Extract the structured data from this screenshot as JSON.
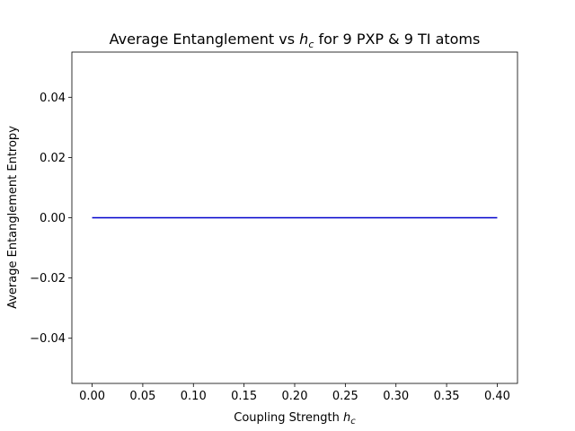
{
  "chart_data": {
    "type": "line",
    "title": "Average Entanglement vs h_c for 9 PXP & 9 TI atoms",
    "title_parts": {
      "prefix": "Average Entanglement vs ",
      "var": "h",
      "sub": "c",
      "suffix": " for 9 PXP & 9 TI atoms"
    },
    "xlabel": "Coupling Strength h_c",
    "xlabel_parts": {
      "prefix": "Coupling Strength ",
      "var": "h",
      "sub": "c"
    },
    "ylabel": "Average Entanglement Entropy",
    "xlim": [
      -0.02,
      0.42
    ],
    "ylim": [
      -0.055,
      0.055
    ],
    "x_ticks": [
      "0.00",
      "0.05",
      "0.10",
      "0.15",
      "0.20",
      "0.25",
      "0.30",
      "0.35",
      "0.40"
    ],
    "x_tick_values": [
      0.0,
      0.05,
      0.1,
      0.15,
      0.2,
      0.25,
      0.3,
      0.35,
      0.4
    ],
    "y_ticks": [
      "−0.04",
      "−0.02",
      "0.00",
      "0.02",
      "0.04"
    ],
    "y_tick_values": [
      -0.04,
      -0.02,
      0.0,
      0.02,
      0.04
    ],
    "grid": false,
    "series": [
      {
        "color": "#0000cc",
        "x": [
          0.0,
          0.05,
          0.1,
          0.15,
          0.2,
          0.25,
          0.3,
          0.35,
          0.4
        ],
        "y": [
          0.0,
          0.0,
          0.0,
          0.0,
          0.0,
          0.0,
          0.0,
          0.0,
          0.0
        ]
      }
    ]
  }
}
